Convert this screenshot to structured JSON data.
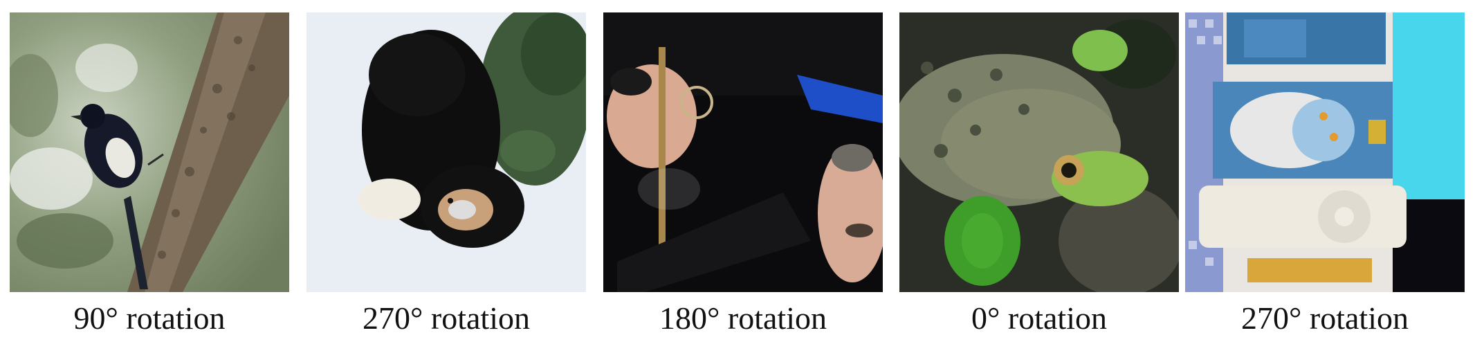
{
  "panels": [
    {
      "caption": "90° rotation",
      "subject": "magpie-on-tree-trunk"
    },
    {
      "caption": "270° rotation",
      "subject": "black-dog-on-snow"
    },
    {
      "caption": "180° rotation",
      "subject": "graduates-in-caps"
    },
    {
      "caption": "0° rotation",
      "subject": "green-frog-on-leaves"
    },
    {
      "caption": "270° rotation",
      "subject": "toy-bathroom-with-ipod"
    }
  ]
}
